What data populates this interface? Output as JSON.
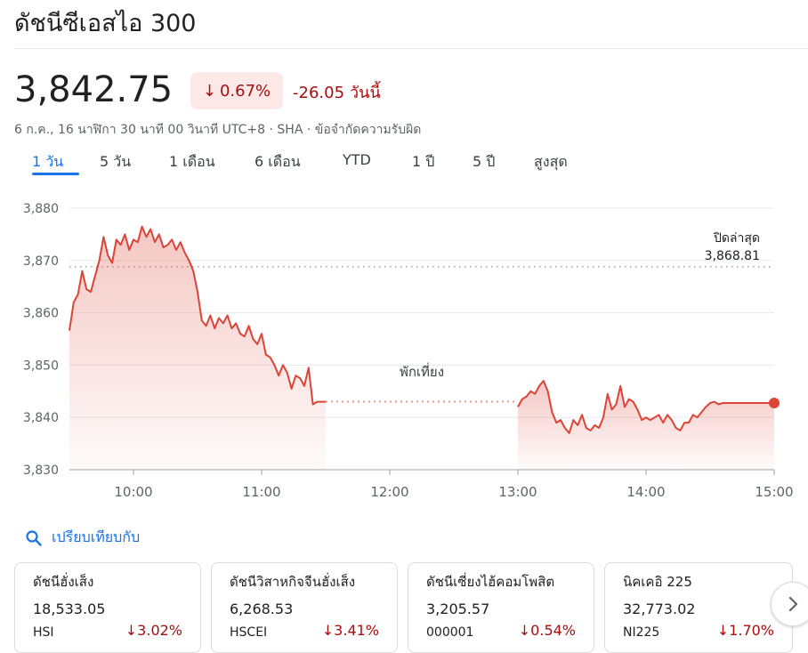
{
  "header": {
    "title": "ดัชนีซีเอสไอ 300",
    "price": "3,842.75",
    "change_pct": "0.67%",
    "change_abs": "-26.05",
    "change_period": "วันนี้",
    "meta": "6 ก.ค., 16 นาฬิกา 30 นาที 00 วินาที UTC+8 · SHA · ข้อจำกัดความรับผิด",
    "colors": {
      "negative": "#a50e0e",
      "negative_bg": "#fce8e6",
      "accent": "#1a73e8",
      "line": "#db4437"
    }
  },
  "tabs": [
    {
      "label": "1 วัน",
      "active": true
    },
    {
      "label": "5 วัน",
      "active": false
    },
    {
      "label": "1 เดือน",
      "active": false
    },
    {
      "label": "6 เดือน",
      "active": false
    },
    {
      "label": "YTD",
      "active": false
    },
    {
      "label": "1 ปี",
      "active": false
    },
    {
      "label": "5 ปี",
      "active": false
    },
    {
      "label": "สูงสุด",
      "active": false
    }
  ],
  "chart_data": {
    "type": "line",
    "title": "",
    "xlabel": "",
    "ylabel": "",
    "x_unit": "time (HH:MM, UTC+8)",
    "ylim": [
      3830,
      3880
    ],
    "y_ticks": [
      3830,
      3840,
      3850,
      3860,
      3870,
      3880
    ],
    "y_tick_labels": [
      "3,830",
      "3,840",
      "3,850",
      "3,860",
      "3,870",
      "3,880"
    ],
    "x_ticks": [
      "10:00",
      "11:00",
      "12:00",
      "13:00",
      "14:00",
      "15:00"
    ],
    "grid": true,
    "previous_close": {
      "label": "ปิดล่าสุด",
      "value": 3868.81,
      "value_label": "3,868.81"
    },
    "lunch_break": {
      "label": "พักเที่ยง",
      "from": "11:30",
      "to": "13:00"
    },
    "series": [
      {
        "color": "#db4437",
        "x": [
          "09:30",
          "09:32",
          "09:34",
          "09:36",
          "09:38",
          "09:40",
          "09:42",
          "09:44",
          "09:46",
          "09:48",
          "09:50",
          "09:52",
          "09:54",
          "09:56",
          "09:58",
          "10:00",
          "10:02",
          "10:04",
          "10:06",
          "10:08",
          "10:10",
          "10:12",
          "10:14",
          "10:16",
          "10:18",
          "10:20",
          "10:22",
          "10:24",
          "10:26",
          "10:28",
          "10:30",
          "10:32",
          "10:34",
          "10:36",
          "10:38",
          "10:40",
          "10:42",
          "10:44",
          "10:46",
          "10:48",
          "10:50",
          "10:52",
          "10:54",
          "10:56",
          "10:58",
          "11:00",
          "11:02",
          "11:04",
          "11:06",
          "11:08",
          "11:10",
          "11:12",
          "11:14",
          "11:16",
          "11:18",
          "11:20",
          "11:22",
          "11:24",
          "11:26",
          "11:28",
          "11:30",
          "13:00",
          "13:02",
          "13:04",
          "13:06",
          "13:08",
          "13:10",
          "13:12",
          "13:14",
          "13:16",
          "13:18",
          "13:20",
          "13:22",
          "13:24",
          "13:26",
          "13:28",
          "13:30",
          "13:32",
          "13:34",
          "13:36",
          "13:38",
          "13:40",
          "13:42",
          "13:44",
          "13:46",
          "13:48",
          "13:50",
          "13:52",
          "13:54",
          "13:56",
          "13:58",
          "14:00",
          "14:02",
          "14:04",
          "14:06",
          "14:08",
          "14:10",
          "14:12",
          "14:14",
          "14:16",
          "14:18",
          "14:20",
          "14:22",
          "14:24",
          "14:26",
          "14:28",
          "14:30",
          "14:32",
          "14:34",
          "14:36",
          "14:38",
          "14:40",
          "14:42",
          "14:44",
          "14:46",
          "14:48",
          "14:50",
          "14:52",
          "14:54",
          "14:56",
          "14:58",
          "15:00"
        ],
        "y": [
          3856.6,
          3862.0,
          3863.5,
          3868.0,
          3864.5,
          3864.0,
          3867.0,
          3870.0,
          3874.5,
          3871.0,
          3869.5,
          3874.0,
          3873.0,
          3875.0,
          3872.0,
          3874.0,
          3873.5,
          3876.5,
          3874.5,
          3876.0,
          3873.5,
          3875.0,
          3872.5,
          3873.0,
          3874.0,
          3872.0,
          3873.5,
          3871.5,
          3870.0,
          3868.0,
          3864.0,
          3858.5,
          3857.5,
          3859.5,
          3857.0,
          3859.0,
          3858.0,
          3859.5,
          3857.0,
          3858.0,
          3856.0,
          3855.5,
          3857.5,
          3855.0,
          3854.0,
          3856.0,
          3852.0,
          3851.5,
          3850.0,
          3848.0,
          3850.0,
          3848.5,
          3845.5,
          3848.0,
          3847.5,
          3846.0,
          3849.5,
          3842.5,
          3843.0,
          3843.0,
          3843.0,
          3842.0,
          3843.5,
          3844.0,
          3845.0,
          3844.5,
          3846.0,
          3847.0,
          3845.0,
          3841.0,
          3839.0,
          3839.5,
          3838.0,
          3837.0,
          3839.5,
          3838.5,
          3840.5,
          3838.0,
          3837.5,
          3838.5,
          3838.0,
          3840.0,
          3844.5,
          3841.5,
          3842.5,
          3846.0,
          3842.0,
          3843.5,
          3843.0,
          3841.5,
          3839.5,
          3840.0,
          3839.5,
          3840.0,
          3840.5,
          3839.0,
          3840.5,
          3839.5,
          3838.0,
          3837.5,
          3839.0,
          3839.0,
          3840.5,
          3840.0,
          3841.0,
          3842.0,
          3842.75,
          3843.0,
          3842.5,
          3842.75,
          3842.75,
          3842.75,
          3842.75,
          3842.75,
          3842.75,
          3842.75,
          3842.75,
          3842.75,
          3842.75,
          3842.75,
          3842.75,
          3842.75
        ]
      }
    ]
  },
  "compare": {
    "label": "เปรียบเทียบกับ",
    "icon": "search-icon"
  },
  "cards": [
    {
      "name": "ดัชนีฮั่งเส็ง",
      "value": "18,533.05",
      "symbol": "HSI",
      "change": "3.02%"
    },
    {
      "name": "ดัชนีวิสาหกิจจีนฮั่งเส็ง",
      "value": "6,268.53",
      "symbol": "HSCEI",
      "change": "3.41%"
    },
    {
      "name": "ดัชนีเซี่ยงไฮ้คอมโพสิต",
      "value": "3,205.57",
      "symbol": "000001",
      "change": "0.54%"
    },
    {
      "name": "นิคเคอิ 225",
      "value": "32,773.02",
      "symbol": "NI225",
      "change": "1.70%"
    }
  ],
  "next_button": {
    "icon": "chevron-right-icon"
  }
}
